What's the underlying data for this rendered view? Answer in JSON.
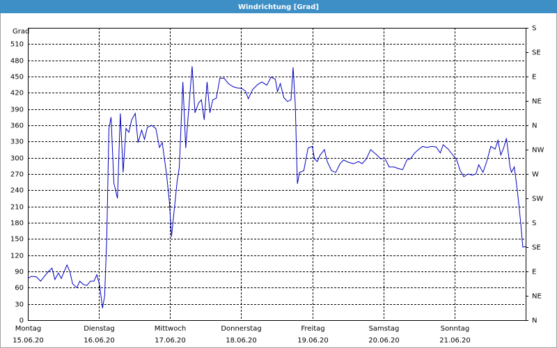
{
  "chart_data": {
    "type": "line",
    "title": "Windrichtung [Grad]",
    "ylabel": "Grad",
    "xlim": [
      0,
      7
    ],
    "xticks": [
      {
        "value": 0,
        "label": "Montag",
        "date": "15.06.20"
      },
      {
        "value": 1,
        "label": "Dienstag",
        "date": "16.06.20"
      },
      {
        "value": 2,
        "label": "Mittwoch",
        "date": "17.06.20"
      },
      {
        "value": 3,
        "label": "Donnerstag",
        "date": "18.06.20"
      },
      {
        "value": 4,
        "label": "Freitag",
        "date": "19.06.20"
      },
      {
        "value": 5,
        "label": "Samstag",
        "date": "20.06.20"
      },
      {
        "value": 6,
        "label": "Sonntag",
        "date": "21.06.20"
      }
    ],
    "ylim": [
      0,
      540
    ],
    "yticks": [
      0,
      30,
      60,
      90,
      120,
      150,
      180,
      210,
      240,
      270,
      300,
      330,
      360,
      390,
      420,
      450,
      480,
      510
    ],
    "y2lim": [
      0,
      540
    ],
    "y2ticks": [
      {
        "value": 0,
        "label": "N"
      },
      {
        "value": 45,
        "label": "NE"
      },
      {
        "value": 90,
        "label": "E"
      },
      {
        "value": 135,
        "label": "SE"
      },
      {
        "value": 180,
        "label": "S"
      },
      {
        "value": 225,
        "label": "SW"
      },
      {
        "value": 270,
        "label": "W"
      },
      {
        "value": 315,
        "label": "NW"
      },
      {
        "value": 360,
        "label": "N"
      },
      {
        "value": 405,
        "label": "NE"
      },
      {
        "value": 450,
        "label": "E"
      },
      {
        "value": 495,
        "label": "SE"
      },
      {
        "value": 540,
        "label": "S"
      }
    ],
    "grid": true,
    "color": "#0000c0",
    "x": [
      0,
      0.05,
      0.12,
      0.18,
      0.24,
      0.29,
      0.34,
      0.38,
      0.43,
      0.47,
      0.55,
      0.59,
      0.63,
      0.69,
      0.73,
      0.78,
      0.83,
      0.88,
      0.93,
      0.97,
      1.01,
      1.05,
      1.08,
      1.11,
      1.14,
      1.17,
      1.21,
      1.26,
      1.3,
      1.34,
      1.38,
      1.42,
      1.46,
      1.51,
      1.55,
      1.6,
      1.64,
      1.68,
      1.74,
      1.8,
      1.85,
      1.89,
      1.95,
      1.99,
      2.02,
      2.06,
      2.1,
      2.13,
      2.18,
      2.22,
      2.26,
      2.31,
      2.35,
      2.4,
      2.44,
      2.48,
      2.52,
      2.56,
      2.6,
      2.65,
      2.7,
      2.76,
      2.82,
      2.89,
      2.95,
      3.01,
      3.06,
      3.1,
      3.16,
      3.23,
      3.29,
      3.36,
      3.42,
      3.48,
      3.51,
      3.55,
      3.6,
      3.65,
      3.7,
      3.73,
      3.76,
      3.79,
      3.82,
      3.88,
      3.94,
      4.0,
      4.03,
      4.07,
      4.11,
      4.17,
      4.21,
      4.27,
      4.33,
      4.39,
      4.44,
      4.5,
      4.58,
      4.65,
      4.7,
      4.76,
      4.82,
      4.9,
      4.96,
      5.02,
      5.08,
      5.15,
      5.21,
      5.27,
      5.33,
      5.38,
      5.44,
      5.5,
      5.55,
      5.61,
      5.68,
      5.74,
      5.8,
      5.84,
      5.91,
      5.97,
      6.03,
      6.08,
      6.13,
      6.19,
      6.25,
      6.3,
      6.34,
      6.4,
      6.45,
      6.51,
      6.57,
      6.61,
      6.65,
      6.69,
      6.73,
      6.78,
      6.8,
      6.84,
      6.87,
      6.9,
      6.93,
      6.96,
      7.0
    ],
    "values": [
      77,
      81,
      80,
      72,
      82,
      90,
      96,
      75,
      87,
      77,
      102,
      90,
      67,
      60,
      72,
      66,
      64,
      72,
      72,
      84,
      64,
      22,
      45,
      154,
      354,
      375,
      253,
      225,
      382,
      273,
      354,
      347,
      370,
      382,
      328,
      351,
      334,
      356,
      360,
      354,
      319,
      328,
      270,
      219,
      154,
      206,
      257,
      283,
      440,
      318,
      386,
      469,
      383,
      401,
      407,
      370,
      440,
      383,
      407,
      410,
      447,
      447,
      437,
      431,
      429,
      428,
      423,
      409,
      426,
      435,
      440,
      434,
      449,
      445,
      422,
      437,
      411,
      404,
      407,
      467,
      399,
      252,
      273,
      276,
      318,
      321,
      298,
      293,
      305,
      315,
      293,
      276,
      273,
      289,
      296,
      292,
      289,
      293,
      289,
      298,
      315,
      306,
      298,
      299,
      283,
      283,
      280,
      278,
      296,
      298,
      309,
      316,
      321,
      319,
      321,
      320,
      309,
      324,
      316,
      306,
      296,
      276,
      265,
      270,
      268,
      270,
      287,
      273,
      292,
      321,
      316,
      332,
      305,
      318,
      336,
      283,
      273,
      283,
      253,
      219,
      180,
      135,
      136
    ]
  }
}
